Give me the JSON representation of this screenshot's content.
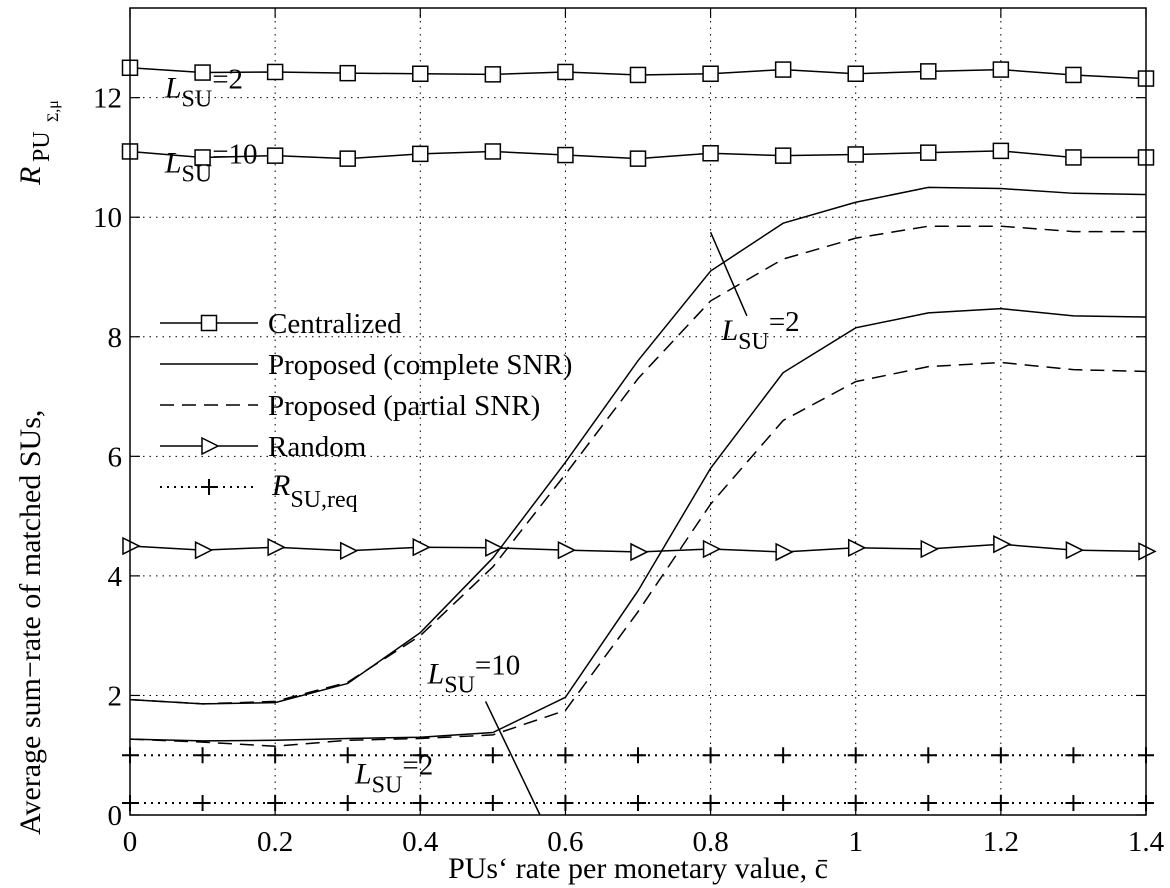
{
  "chart_data": {
    "type": "line",
    "xlabel": "PUs‘ rate per monetary value, c̄",
    "ylabel": {
      "main": "Average sum−rate of matched SUs,",
      "symbol": "R",
      "sub": "PU",
      "subsub": "Σ,μ"
    },
    "xlim": [
      0,
      1.4
    ],
    "ylim": [
      0,
      13.5
    ],
    "x_ticks": [
      0,
      0.2,
      0.4,
      0.6,
      0.8,
      1,
      1.2,
      1.4
    ],
    "x_tick_labels": [
      "0",
      "0.2",
      "0.4",
      "0.6",
      "0.8",
      "1",
      "1.2",
      "1.4"
    ],
    "y_ticks": [
      0,
      2,
      4,
      6,
      8,
      10,
      12
    ],
    "y_tick_labels": [
      "0",
      "2",
      "4",
      "6",
      "8",
      "10",
      "12"
    ],
    "grid": true,
    "legend": {
      "position": "left-middle",
      "entries": [
        {
          "label": "Centralized",
          "style": "solid",
          "marker": "square"
        },
        {
          "label": "Proposed (complete SNR)",
          "style": "solid",
          "marker": "none"
        },
        {
          "label": "Proposed (partial SNR)",
          "style": "dashed",
          "marker": "none"
        },
        {
          "label": "Random",
          "style": "solid",
          "marker": "triangle-right"
        },
        {
          "label": "R",
          "label_sub": "SU,req",
          "style": "dotted",
          "marker": "plus"
        }
      ]
    },
    "x": [
      0,
      0.1,
      0.2,
      0.3,
      0.4,
      0.5,
      0.6,
      0.7,
      0.8,
      0.9,
      1.0,
      1.1,
      1.2,
      1.3,
      1.4
    ],
    "series": [
      {
        "legend": "Centralized",
        "group": "L_SU=2",
        "style": "solid",
        "marker": "square",
        "values": [
          12.5,
          12.42,
          12.43,
          12.41,
          12.4,
          12.39,
          12.43,
          12.38,
          12.4,
          12.47,
          12.4,
          12.44,
          12.47,
          12.38,
          12.32
        ]
      },
      {
        "legend": "Centralized",
        "group": "L_SU=10",
        "style": "solid",
        "marker": "square",
        "values": [
          11.1,
          11.0,
          11.03,
          10.98,
          11.06,
          11.1,
          11.04,
          10.98,
          11.07,
          11.03,
          11.05,
          11.08,
          11.11,
          11.0,
          11.0
        ]
      },
      {
        "legend": "Proposed (complete SNR)",
        "group": "L_SU=10",
        "style": "solid",
        "marker": "none",
        "values": [
          1.93,
          1.86,
          1.88,
          2.2,
          3.05,
          4.3,
          5.9,
          7.6,
          9.1,
          9.9,
          10.25,
          10.5,
          10.48,
          10.4,
          10.38
        ]
      },
      {
        "legend": "Proposed (partial SNR)",
        "group": "L_SU=10",
        "style": "dashed",
        "marker": "none",
        "values": [
          1.93,
          1.86,
          1.9,
          2.22,
          3.0,
          4.15,
          5.7,
          7.3,
          8.6,
          9.3,
          9.65,
          9.85,
          9.85,
          9.76,
          9.76
        ]
      },
      {
        "legend": "Proposed (complete SNR)",
        "group": "L_SU=2",
        "style": "solid",
        "marker": "none",
        "values": [
          1.27,
          1.24,
          1.25,
          1.28,
          1.3,
          1.38,
          1.97,
          3.75,
          5.8,
          7.4,
          8.15,
          8.4,
          8.47,
          8.35,
          8.33
        ]
      },
      {
        "legend": "Proposed (partial SNR)",
        "group": "L_SU=2",
        "style": "dashed",
        "marker": "none",
        "values": [
          1.27,
          1.22,
          1.15,
          1.25,
          1.28,
          1.34,
          1.75,
          3.4,
          5.2,
          6.6,
          7.25,
          7.5,
          7.57,
          7.45,
          7.42
        ]
      },
      {
        "legend": "Random",
        "group": "",
        "style": "solid",
        "marker": "triangle-right",
        "values": [
          4.5,
          4.43,
          4.48,
          4.42,
          4.48,
          4.47,
          4.43,
          4.4,
          4.45,
          4.4,
          4.47,
          4.45,
          4.53,
          4.43,
          4.41
        ]
      },
      {
        "legend": "R_SU,req",
        "group": "L_SU=10",
        "style": "dotted",
        "marker": "plus",
        "values": [
          1.0,
          1.0,
          1.0,
          1.0,
          1.0,
          1.0,
          1.0,
          1.0,
          1.0,
          1.0,
          1.0,
          1.0,
          1.0,
          1.0,
          1.0
        ]
      },
      {
        "legend": "R_SU,req",
        "group": "L_SU=2",
        "style": "dotted",
        "marker": "plus",
        "values": [
          0.2,
          0.2,
          0.2,
          0.2,
          0.2,
          0.2,
          0.2,
          0.2,
          0.2,
          0.2,
          0.2,
          0.2,
          0.2,
          0.2,
          0.2
        ]
      }
    ],
    "annotations": [
      {
        "text": "L",
        "sub": "SU",
        "tail": "=2",
        "x": 0.048,
        "y": 12.0
      },
      {
        "text": "L",
        "sub": "SU",
        "tail": "=10",
        "x": 0.048,
        "y": 10.75
      },
      {
        "text": "L",
        "sub": "SU",
        "tail": "=2",
        "x": 0.815,
        "y": 7.95
      },
      {
        "text": "L",
        "sub": "SU",
        "tail": "=10",
        "x": 0.41,
        "y": 2.2
      },
      {
        "text": "L",
        "sub": "SU",
        "tail": "=2",
        "x": 0.31,
        "y": 0.53
      }
    ],
    "callout_lines": [
      {
        "x1": 0.8,
        "y1": 9.75,
        "x2": 0.85,
        "y2": 8.35
      },
      {
        "x1": 0.49,
        "y1": 1.9,
        "x2": 0.565,
        "y2": 0.0
      }
    ]
  }
}
